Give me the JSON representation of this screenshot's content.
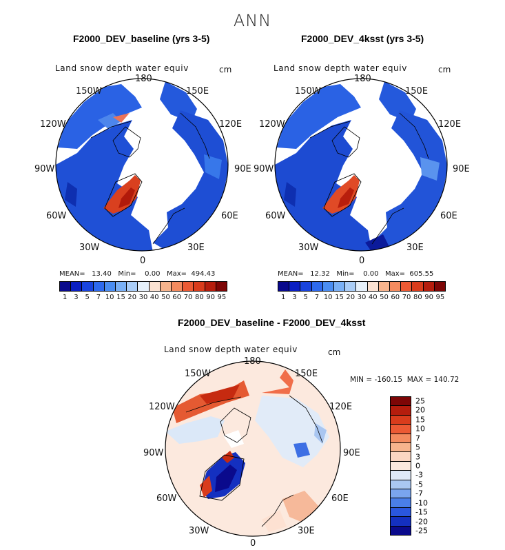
{
  "figure": {
    "title": "ANN"
  },
  "panels": [
    {
      "title": "F2000_DEV_baseline (yrs 3-5)",
      "variable": "Land snow depth water equiv",
      "unit": "cm",
      "stats": "MEAN=   13.40   Min=    0.00   Max=  494.43",
      "lon_labels": {
        "l180": "180",
        "l150w": "150W",
        "l150e": "150E",
        "l120w": "120W",
        "l120e": "120E",
        "l90w": "90W",
        "l90e": "90E",
        "l60w": "60W",
        "l60e": "60E",
        "l30w": "30W",
        "l30e": "30E",
        "l0": "0"
      }
    },
    {
      "title": "F2000_DEV_4ksst (yrs 3-5)",
      "variable": "Land snow depth water equiv",
      "unit": "cm",
      "stats": "MEAN=   12.32   Min=    0.00   Max=  605.55",
      "lon_labels": {
        "l180": "180",
        "l150w": "150W",
        "l150e": "150E",
        "l120w": "120W",
        "l120e": "120E",
        "l90w": "90W",
        "l90e": "90E",
        "l60w": "60W",
        "l60e": "60E",
        "l30w": "30W",
        "l30e": "30E",
        "l0": "0"
      }
    },
    {
      "title": "F2000_DEV_baseline - F2000_DEV_4ksst",
      "variable": "Land snow depth water equiv",
      "unit": "cm",
      "stats": "MIN = -160.15  MAX = 140.72",
      "lon_labels": {
        "l180": "180",
        "l150w": "150W",
        "l150e": "150E",
        "l120w": "120W",
        "l120e": "120E",
        "l90w": "90W",
        "l90e": "90E",
        "l60w": "60W",
        "l60e": "60E",
        "l30w": "30W",
        "l30e": "30E",
        "l0": "0"
      }
    }
  ],
  "colorbar_abs": {
    "labels": [
      "1",
      "3",
      "5",
      "7",
      "10",
      "15",
      "20",
      "30",
      "40",
      "50",
      "60",
      "70",
      "80",
      "90",
      "95"
    ],
    "colors": [
      "#0a0a8c",
      "#0b1fc2",
      "#1944de",
      "#2e6aee",
      "#4a8df2",
      "#7ab0f5",
      "#aacdf7",
      "#e6f0fa",
      "#fbe2d2",
      "#f7b48d",
      "#f48b5f",
      "#ec5a34",
      "#d93c1c",
      "#b51d0d",
      "#7d0606"
    ]
  },
  "colorbar_diff": {
    "labels": [
      "25",
      "20",
      "15",
      "10",
      "7",
      "5",
      "3",
      "0",
      "-3",
      "-5",
      "-7",
      "-10",
      "-15",
      "-20",
      "-25"
    ],
    "colors": [
      "#7d0606",
      "#b51d0d",
      "#d93c1c",
      "#ec5a34",
      "#f48b5f",
      "#f7b48d",
      "#fbd6c2",
      "#fce9de",
      "#dfe9f7",
      "#aac8f2",
      "#7aa5ee",
      "#4a7fe8",
      "#2a57de",
      "#1430c0",
      "#0a0a8c"
    ]
  }
}
